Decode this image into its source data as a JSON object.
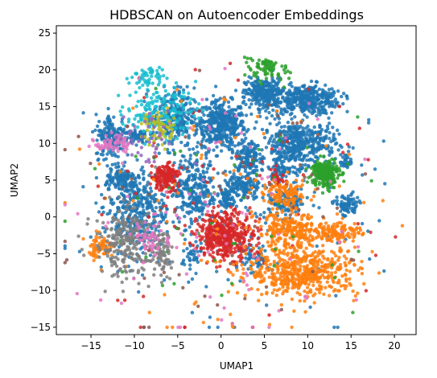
{
  "chart_data": {
    "type": "scatter",
    "title": "HDBSCAN on Autoencoder Embeddings",
    "xlabel": "UMAP1",
    "ylabel": "UMAP2",
    "xlim": [
      -19.0,
      22.5
    ],
    "ylim": [
      -16.0,
      26.0
    ],
    "xticks": [
      -15,
      -10,
      -5,
      0,
      5,
      10,
      15,
      20
    ],
    "yticks": [
      -15,
      -10,
      -5,
      0,
      5,
      10,
      15,
      20,
      25
    ],
    "grid": false,
    "legend": "none",
    "clusters": [
      {
        "color": "#1f77b4",
        "cx": 0.0,
        "cy": 12.5,
        "sx": 1.4,
        "sy": 1.6,
        "n": 420
      },
      {
        "color": "#1f77b4",
        "cx": 9.8,
        "cy": 16.0,
        "sx": 2.0,
        "sy": 1.0,
        "n": 380
      },
      {
        "color": "#1f77b4",
        "cx": 5.0,
        "cy": 16.8,
        "sx": 1.1,
        "sy": 1.0,
        "n": 260
      },
      {
        "color": "#1f77b4",
        "cx": 9.0,
        "cy": 10.0,
        "sx": 2.1,
        "sy": 1.5,
        "n": 420
      },
      {
        "color": "#1f77b4",
        "cx": -5.5,
        "cy": 13.5,
        "sx": 1.2,
        "sy": 2.0,
        "n": 240
      },
      {
        "color": "#1f77b4",
        "cx": -12.5,
        "cy": 11.0,
        "sx": 1.0,
        "sy": 1.5,
        "n": 170
      },
      {
        "color": "#1f77b4",
        "cx": -10.0,
        "cy": 1.0,
        "sx": 1.8,
        "sy": 2.8,
        "n": 380
      },
      {
        "color": "#1f77b4",
        "cx": -3.0,
        "cy": 4.0,
        "sx": 1.2,
        "sy": 2.4,
        "n": 260
      },
      {
        "color": "#1f77b4",
        "cx": 3.0,
        "cy": 8.0,
        "sx": 0.7,
        "sy": 1.3,
        "n": 130
      },
      {
        "color": "#1f77b4",
        "cx": 2.5,
        "cy": 4.0,
        "sx": 1.0,
        "sy": 1.0,
        "n": 140
      },
      {
        "color": "#1f77b4",
        "cx": -11.5,
        "cy": 5.0,
        "sx": 0.9,
        "sy": 0.7,
        "n": 90
      },
      {
        "color": "#1f77b4",
        "cx": -9.5,
        "cy": 11.0,
        "sx": 0.6,
        "sy": 0.5,
        "n": 60
      },
      {
        "color": "#1f77b4",
        "cx": 0.5,
        "cy": 2.5,
        "sx": 0.5,
        "sy": 0.6,
        "n": 50
      },
      {
        "color": "#1f77b4",
        "cx": 7.0,
        "cy": 6.5,
        "sx": 0.8,
        "sy": 0.9,
        "n": 80
      },
      {
        "color": "#1f77b4",
        "cx": 7.5,
        "cy": 2.0,
        "sx": 1.4,
        "sy": 1.0,
        "n": 110
      },
      {
        "color": "#1f77b4",
        "cx": 14.5,
        "cy": 1.5,
        "sx": 0.7,
        "sy": 0.8,
        "n": 80
      },
      {
        "color": "#1f77b4",
        "cx": 14.5,
        "cy": 7.5,
        "sx": 0.4,
        "sy": 0.5,
        "n": 30
      },
      {
        "color": "#1f77b4",
        "cx": 4.0,
        "cy": -5.5,
        "sx": 0.8,
        "sy": 1.2,
        "n": 60
      },
      {
        "color": "#1f77b4",
        "cx": -3.5,
        "cy": -5.5,
        "sx": 0.6,
        "sy": 1.2,
        "n": 40
      },
      {
        "color": "#1f77b4",
        "cx": 0.0,
        "cy": 0.0,
        "sx": 10.0,
        "sy": 10.0,
        "n": 120
      },
      {
        "color": "#d62728",
        "cx": 0.5,
        "cy": -2.5,
        "sx": 1.6,
        "sy": 1.6,
        "n": 420
      },
      {
        "color": "#d62728",
        "cx": -6.5,
        "cy": 5.5,
        "sx": 0.8,
        "sy": 0.9,
        "n": 160
      },
      {
        "color": "#d62728",
        "cx": 6.5,
        "cy": 5.0,
        "sx": 0.5,
        "sy": 0.5,
        "n": 30
      },
      {
        "color": "#d62728",
        "cx": 0.0,
        "cy": 0.0,
        "sx": 10.0,
        "sy": 10.0,
        "n": 70
      },
      {
        "color": "#ff7f0e",
        "cx": 9.5,
        "cy": -7.5,
        "sx": 3.2,
        "sy": 1.6,
        "n": 520
      },
      {
        "color": "#ff7f0e",
        "cx": 8.0,
        "cy": -2.0,
        "sx": 2.0,
        "sy": 1.3,
        "n": 260
      },
      {
        "color": "#ff7f0e",
        "cx": 13.5,
        "cy": -2.0,
        "sx": 1.3,
        "sy": 0.7,
        "n": 120
      },
      {
        "color": "#ff7f0e",
        "cx": 7.5,
        "cy": 3.0,
        "sx": 1.3,
        "sy": 0.8,
        "n": 110
      },
      {
        "color": "#ff7f0e",
        "cx": -14.0,
        "cy": -4.0,
        "sx": 0.8,
        "sy": 0.8,
        "n": 60
      },
      {
        "color": "#ff7f0e",
        "cx": 0.0,
        "cy": 0.0,
        "sx": 10.0,
        "sy": 10.0,
        "n": 90
      },
      {
        "color": "#2ca02c",
        "cx": 12.0,
        "cy": 6.0,
        "sx": 0.8,
        "sy": 1.0,
        "n": 230
      },
      {
        "color": "#2ca02c",
        "cx": 5.5,
        "cy": 21.0,
        "sx": 1.2,
        "sy": 1.2,
        "n": 80
      },
      {
        "color": "#2ca02c",
        "cx": 0.0,
        "cy": 0.0,
        "sx": 10.0,
        "sy": 10.0,
        "n": 50
      },
      {
        "color": "#7f7f7f",
        "cx": -11.0,
        "cy": -3.5,
        "sx": 1.8,
        "sy": 2.4,
        "n": 240
      },
      {
        "color": "#7f7f7f",
        "cx": -7.0,
        "cy": -5.0,
        "sx": 0.7,
        "sy": 1.5,
        "n": 80
      },
      {
        "color": "#17becf",
        "cx": -7.0,
        "cy": 14.5,
        "sx": 2.0,
        "sy": 1.8,
        "n": 160
      },
      {
        "color": "#17becf",
        "cx": -8.5,
        "cy": 19.5,
        "sx": 1.0,
        "sy": 1.0,
        "n": 50
      },
      {
        "color": "#e377c2",
        "cx": -12.5,
        "cy": 10.0,
        "sx": 1.0,
        "sy": 0.6,
        "n": 60
      },
      {
        "color": "#e377c2",
        "cx": -8.0,
        "cy": -3.0,
        "sx": 1.0,
        "sy": 1.0,
        "n": 50
      },
      {
        "color": "#e377c2",
        "cx": 0.0,
        "cy": 0.0,
        "sx": 10.0,
        "sy": 10.0,
        "n": 90
      },
      {
        "color": "#bcbd22",
        "cx": -7.0,
        "cy": 12.0,
        "sx": 1.0,
        "sy": 1.2,
        "n": 60
      },
      {
        "color": "#9467bd",
        "cx": -9.0,
        "cy": 10.0,
        "sx": 2.0,
        "sy": 2.0,
        "n": 40
      },
      {
        "color": "#8c564b",
        "cx": 0.0,
        "cy": 0.0,
        "sx": 10.0,
        "sy": 10.0,
        "n": 70
      }
    ]
  }
}
